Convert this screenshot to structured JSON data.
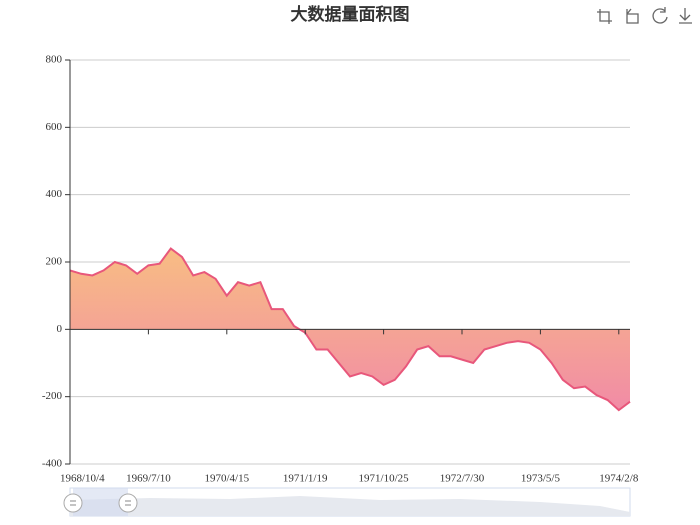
{
  "chart_data": {
    "type": "area",
    "title": "大数据量面积图",
    "categories": [
      "1968/10/4",
      null,
      null,
      null,
      null,
      null,
      null,
      "1969/7/10",
      null,
      null,
      null,
      null,
      null,
      null,
      "1970/4/15",
      null,
      null,
      null,
      null,
      null,
      null,
      "1971/1/19",
      null,
      null,
      null,
      null,
      null,
      null,
      "1971/10/25",
      null,
      null,
      null,
      null,
      null,
      null,
      "1972/7/30",
      null,
      null,
      null,
      null,
      null,
      null,
      "1973/5/5",
      null,
      null,
      null,
      null,
      null,
      null,
      "1974/2/8",
      null
    ],
    "series": [
      {
        "values": [
          175,
          165,
          160,
          175,
          200,
          190,
          165,
          190,
          195,
          240,
          215,
          160,
          170,
          150,
          100,
          140,
          130,
          140,
          60,
          60,
          10,
          -10,
          -60,
          -60,
          -100,
          -140,
          -130,
          -140,
          -165,
          -150,
          -110,
          -60,
          -50,
          -80,
          -80,
          -90,
          -100,
          -60,
          -50,
          -40,
          -35,
          -40,
          -60,
          -100,
          -150,
          -175,
          -170,
          -195,
          -210,
          -240,
          -215
        ]
      }
    ],
    "line_color": "#e8577b",
    "area_colors": [
      "#f8bd83",
      "#f18ba6"
    ],
    "ylim": [
      -400,
      800
    ],
    "yticks": [
      -400,
      -200,
      0,
      200,
      400,
      600,
      800
    ],
    "grid": true
  }
}
